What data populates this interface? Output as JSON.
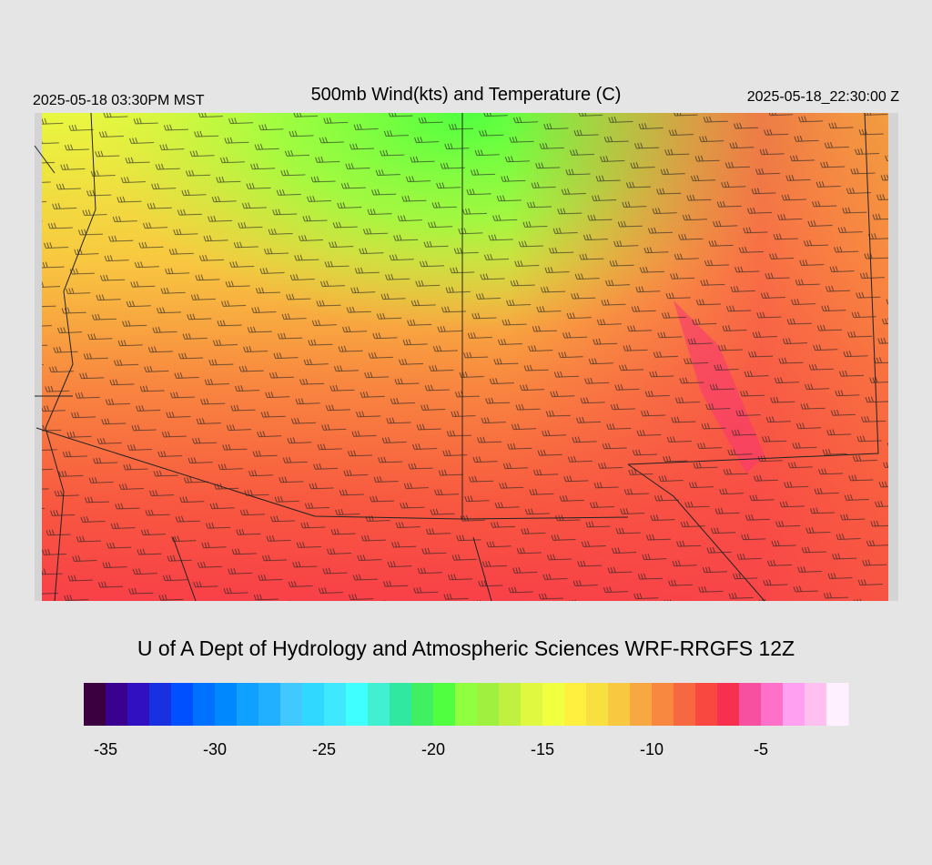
{
  "header": {
    "title": "500mb Wind(kts) and Temperature (C)",
    "local_time": "2025-05-18 03:30PM MST",
    "valid_time": "2025-05-18_22:30:00 Z"
  },
  "footer": {
    "credit": "U of A Dept of Hydrology and Atmospheric Sciences WRF-RRGFS 12Z"
  },
  "colorbar": {
    "lim": [
      -36,
      -1
    ],
    "ticks": [
      -35,
      -30,
      -25,
      -20,
      -15,
      -10,
      -5
    ],
    "colors": [
      "#3a0040",
      "#3a0090",
      "#3010c0",
      "#1830e0",
      "#0050ff",
      "#0070ff",
      "#0088ff",
      "#10a0ff",
      "#20b0ff",
      "#40c8ff",
      "#30d8ff",
      "#40e8ff",
      "#40ffff",
      "#40f0d0",
      "#30e8a0",
      "#40f060",
      "#50ff40",
      "#90ff40",
      "#a0f040",
      "#c0f040",
      "#e0f840",
      "#f0ff40",
      "#fff040",
      "#f8e040",
      "#f8c840",
      "#f8a840",
      "#f88840",
      "#f86840",
      "#f84840",
      "#f83050",
      "#f850a0",
      "#ff70c8",
      "#ffa0f0",
      "#ffc0f0",
      "#fff0ff"
    ]
  }
}
